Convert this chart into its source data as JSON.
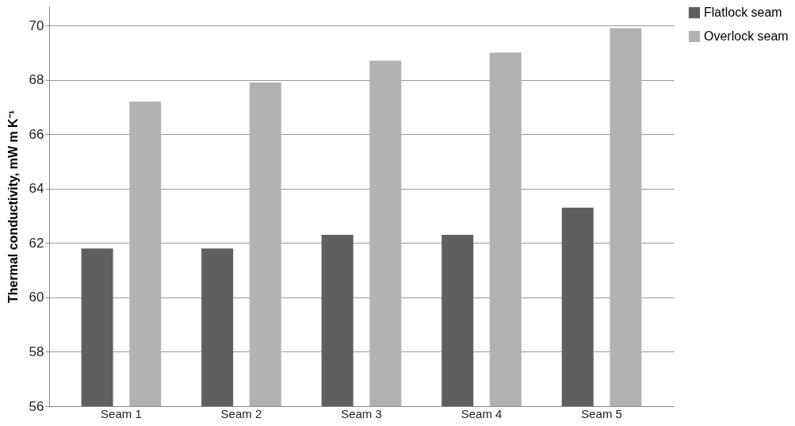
{
  "chart_data": {
    "type": "bar",
    "ylabel": "Thermal conductivity,  mW m K⁻¹",
    "categories": [
      "Seam 1",
      "Seam 2",
      "Seam 3",
      "Seam 4",
      "Seam 5"
    ],
    "series": [
      {
        "name": "Flatlock seam",
        "color": "#5f5f5f",
        "values": [
          61.8,
          61.8,
          62.3,
          62.3,
          63.3
        ]
      },
      {
        "name": "Overlock seam",
        "color": "#b2b2b2",
        "values": [
          67.2,
          67.9,
          68.7,
          69.0,
          69.9
        ]
      }
    ],
    "ylim": [
      56,
      70.7
    ],
    "yticks": [
      56,
      58,
      60,
      62,
      64,
      66,
      68,
      70
    ],
    "grid": "y",
    "legend": "right"
  }
}
